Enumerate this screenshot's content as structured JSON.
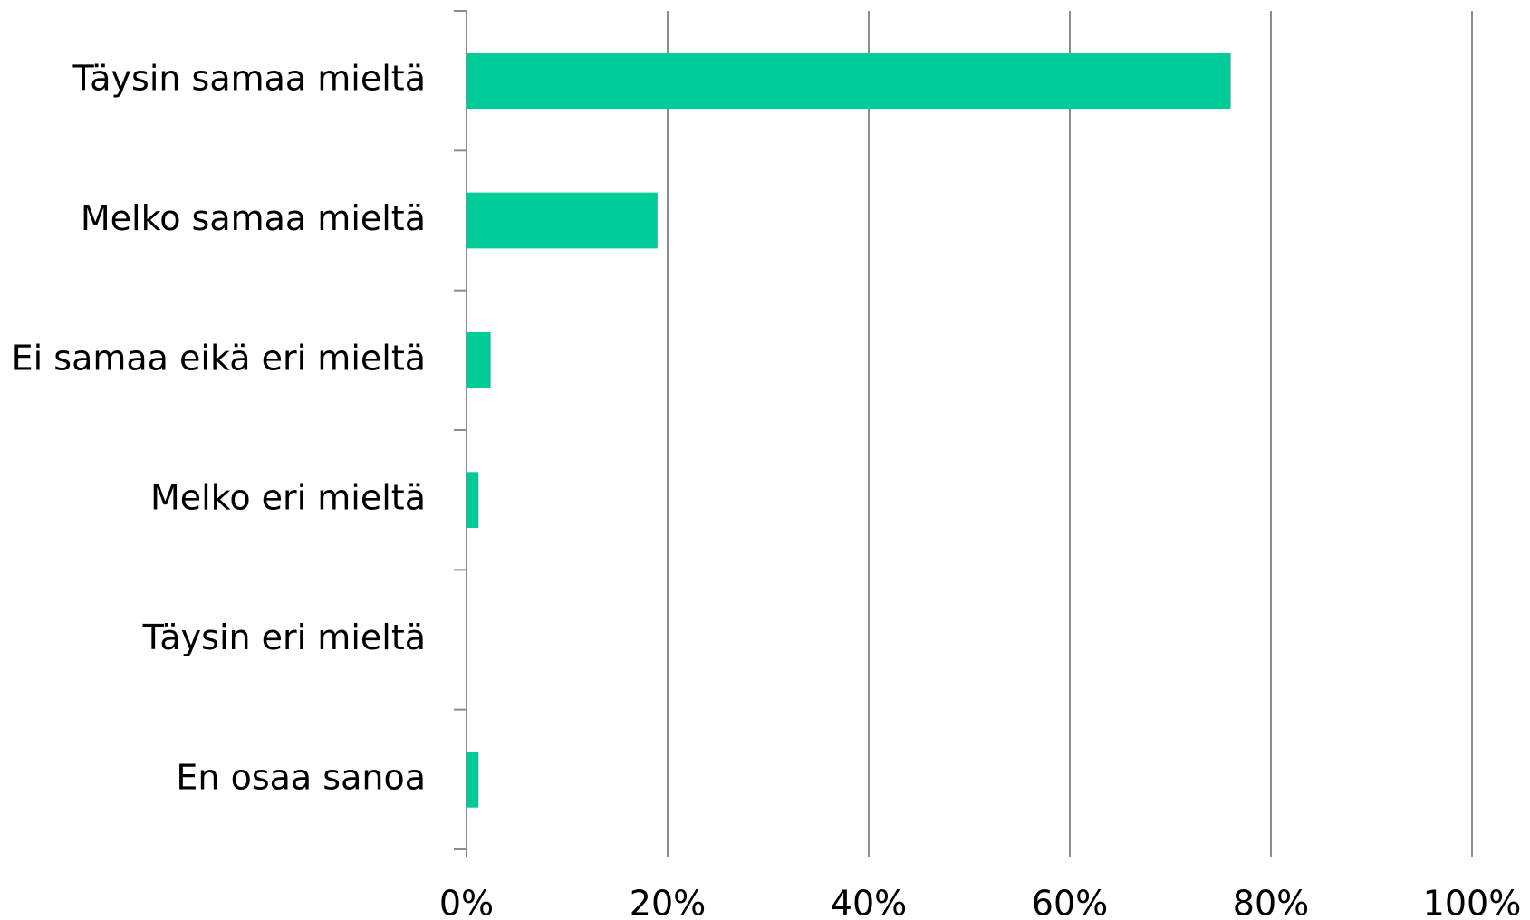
{
  "chart_data": {
    "type": "hbar",
    "categories": [
      "Täysin samaa mieltä",
      "Melko samaa mieltä",
      "Ei samaa eikä eri mieltä",
      "Melko eri mieltä",
      "Täysin eri mieltä",
      "En osaa sanoa"
    ],
    "values": [
      76,
      19,
      2.4,
      1.2,
      0,
      1.2
    ],
    "color": "#00cc99",
    "xlim": [
      0,
      100
    ],
    "xticks": [
      {
        "value": 0,
        "label": "0%"
      },
      {
        "value": 20,
        "label": "20%"
      },
      {
        "value": 40,
        "label": "40%"
      },
      {
        "value": 60,
        "label": "60%"
      },
      {
        "value": 80,
        "label": "80%"
      },
      {
        "value": 100,
        "label": "100%"
      }
    ],
    "grid": true
  }
}
